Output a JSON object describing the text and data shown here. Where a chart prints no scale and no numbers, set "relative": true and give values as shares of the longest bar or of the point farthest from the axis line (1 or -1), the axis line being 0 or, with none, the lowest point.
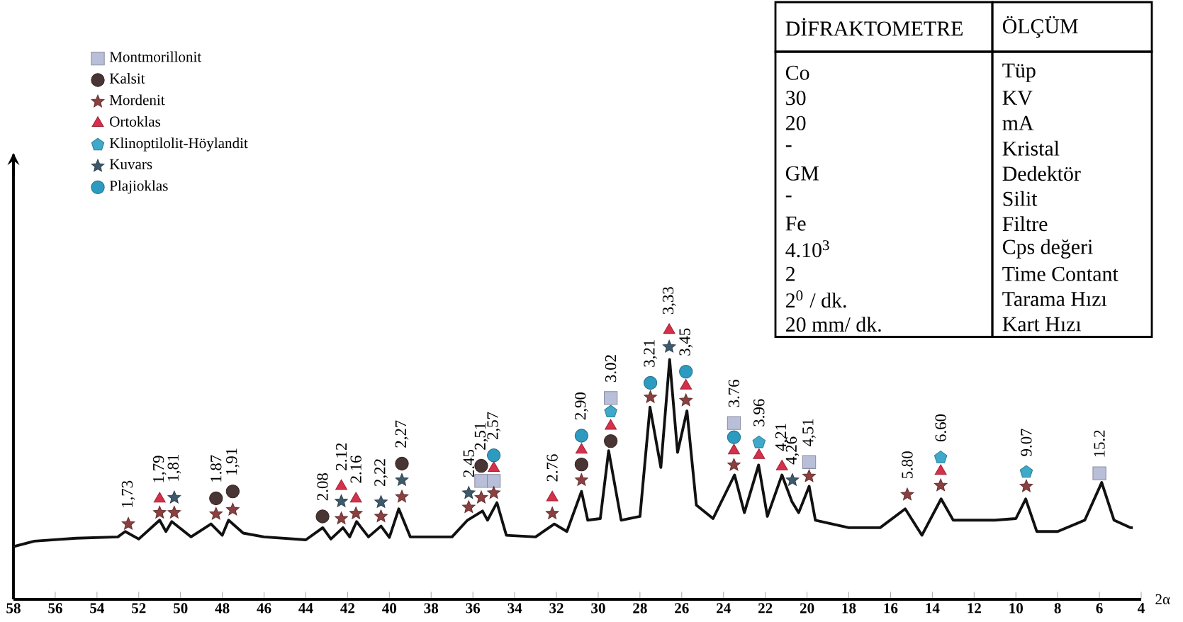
{
  "chart_data": {
    "type": "line",
    "relative": true,
    "xlabel": "2α",
    "xlim": [
      58,
      4
    ],
    "xticks": [
      58,
      56,
      54,
      52,
      50,
      48,
      46,
      44,
      42,
      40,
      38,
      36,
      34,
      32,
      30,
      28,
      26,
      24,
      22,
      20,
      18,
      16,
      14,
      12,
      10,
      8,
      6,
      4
    ],
    "legend": "top left",
    "series": [
      {
        "type": "line",
        "color": "#111111",
        "x": [
          58,
          57,
          55,
          53,
          52.65,
          52,
          51,
          50.7,
          50.42,
          49.5,
          48.54,
          48,
          47.7,
          47,
          46,
          44,
          43.19,
          42.8,
          42.22,
          41.9,
          41.57,
          41,
          40.4,
          40,
          39.55,
          39,
          37,
          36.26,
          35.54,
          35.3,
          34.85,
          34.4,
          33,
          32.1,
          31.5,
          30.8,
          30.5,
          29.9,
          29.5,
          28.9,
          28.0,
          27.52,
          27.0,
          26.58,
          26.2,
          25.75,
          25.3,
          24.5,
          23.47,
          23.0,
          22.32,
          21.9,
          21.2,
          20.73,
          20.4,
          19.9,
          19.6,
          18,
          16.5,
          15.3,
          14.5,
          13.58,
          13,
          11,
          10,
          9.53,
          9,
          8,
          6.7,
          5.89,
          5.3,
          4.5,
          4.4
        ],
        "values": [
          0.196,
          0.216,
          0.227,
          0.232,
          0.252,
          0.224,
          0.294,
          0.252,
          0.289,
          0.232,
          0.28,
          0.238,
          0.294,
          0.246,
          0.232,
          0.221,
          0.266,
          0.224,
          0.266,
          0.232,
          0.289,
          0.232,
          0.272,
          0.23,
          0.336,
          0.232,
          0.232,
          0.294,
          0.328,
          0.294,
          0.359,
          0.238,
          0.232,
          0.28,
          0.252,
          0.401,
          0.294,
          0.3,
          0.552,
          0.294,
          0.308,
          0.714,
          0.49,
          0.891,
          0.546,
          0.7,
          0.35,
          0.3,
          0.462,
          0.322,
          0.499,
          0.308,
          0.462,
          0.364,
          0.322,
          0.42,
          0.294,
          0.266,
          0.266,
          0.336,
          0.238,
          0.373,
          0.294,
          0.294,
          0.3,
          0.373,
          0.252,
          0.252,
          0.294,
          0.434,
          0.294,
          0.266,
          0.266
        ]
      },
      {
        "type": "scatter",
        "name": "Montmorillonit",
        "color": "#b9bfd8",
        "marker": "square",
        "x": [
          35.6,
          35.0,
          29.4,
          23.5,
          19.9,
          6.0
        ],
        "values": [
          0.44,
          0.44,
          0.748,
          0.655,
          0.51,
          0.468
        ]
      },
      {
        "type": "scatter",
        "name": "Kalsit",
        "color": "#4a3535",
        "marker": "circle",
        "x": [
          48.3,
          47.5,
          43.2,
          39.4,
          35.6,
          30.8,
          29.4
        ],
        "values": [
          0.375,
          0.401,
          0.308,
          0.504,
          0.496,
          0.501,
          0.588
        ]
      },
      {
        "type": "scatter",
        "name": "Mordenit",
        "color": "#8b4040",
        "marker": "star",
        "x": [
          52.5,
          51,
          50.3,
          48.3,
          47.5,
          42.3,
          41.6,
          40.4,
          39.4,
          36.2,
          35.6,
          35.0,
          32.2,
          30.8,
          27.5,
          25.8,
          23.5,
          19.9,
          15.2,
          13.6,
          9.5
        ],
        "values": [
          0.28,
          0.322,
          0.322,
          0.317,
          0.333,
          0.3,
          0.319,
          0.308,
          0.381,
          0.342,
          0.378,
          0.395,
          0.319,
          0.443,
          0.751,
          0.739,
          0.499,
          0.457,
          0.389,
          0.423,
          0.42
        ]
      },
      {
        "type": "scatter",
        "name": "Ortoklas",
        "color": "#d6304a",
        "marker": "triangle",
        "x": [
          51,
          42.3,
          41.6,
          35.0,
          32.2,
          30.8,
          29.4,
          26.6,
          25.8,
          23.5,
          22.3,
          21.2,
          13.6
        ],
        "values": [
          0.373,
          0.42,
          0.373,
          0.487,
          0.378,
          0.555,
          0.644,
          1.0,
          0.793,
          0.552,
          0.535,
          0.493,
          0.476
        ]
      },
      {
        "type": "scatter",
        "name": "Klinoptilolit-Höylandit",
        "color": "#3fa9c9",
        "marker": "diamond",
        "x": [
          29.4,
          22.3,
          13.6,
          9.5
        ],
        "values": [
          0.697,
          0.583,
          0.527,
          0.473
        ]
      },
      {
        "type": "scatter",
        "name": "Kuvars",
        "color": "#3d5a6c",
        "marker": "star",
        "x": [
          50.3,
          42.3,
          40.4,
          39.4,
          36.2,
          26.6,
          20.7
        ],
        "values": [
          0.378,
          0.364,
          0.361,
          0.443,
          0.395,
          0.938,
          0.443
        ]
      },
      {
        "type": "scatter",
        "name": "Plajioklas",
        "color": "#2d9bbf",
        "marker": "circle",
        "x": [
          35.0,
          30.8,
          27.5,
          25.8,
          23.5
        ],
        "values": [
          0.535,
          0.608,
          0.804,
          0.846,
          0.602
        ]
      }
    ],
    "annotations": [
      {
        "text": "1,73",
        "x": 52.5,
        "y": 0.28
      },
      {
        "text": "1,79",
        "x": 51,
        "y": 0.373
      },
      {
        "text": "1,81",
        "x": 50.3,
        "y": 0.378
      },
      {
        "text": "1.87",
        "x": 48.3,
        "y": 0.375
      },
      {
        "text": "1,91",
        "x": 47.5,
        "y": 0.401
      },
      {
        "text": "2.08",
        "x": 43.2,
        "y": 0.308
      },
      {
        "text": "2.12",
        "x": 42.3,
        "y": 0.42
      },
      {
        "text": "2.16",
        "x": 41.6,
        "y": 0.373
      },
      {
        "text": "2,22",
        "x": 40.4,
        "y": 0.361
      },
      {
        "text": "2,27",
        "x": 39.4,
        "y": 0.504
      },
      {
        "text": "2.45",
        "x": 36.2,
        "y": 0.395
      },
      {
        "text": "2,51",
        "x": 35.6,
        "y": 0.496
      },
      {
        "text": "2,57",
        "x": 35.0,
        "y": 0.535
      },
      {
        "text": "2.76",
        "x": 32.2,
        "y": 0.378
      },
      {
        "text": "2,90",
        "x": 30.8,
        "y": 0.608
      },
      {
        "text": "3.02",
        "x": 29.4,
        "y": 0.748
      },
      {
        "text": "3,21",
        "x": 27.5,
        "y": 0.804
      },
      {
        "text": "3,33",
        "x": 26.6,
        "y": 1.0
      },
      {
        "text": "3,45",
        "x": 25.8,
        "y": 0.846
      },
      {
        "text": "3.76",
        "x": 23.5,
        "y": 0.655
      },
      {
        "text": "3.96",
        "x": 22.3,
        "y": 0.583
      },
      {
        "text": "4,21",
        "x": 21.2,
        "y": 0.493
      },
      {
        "text": "4,26",
        "x": 20.7,
        "y": 0.443
      },
      {
        "text": "4,51",
        "x": 19.9,
        "y": 0.51
      },
      {
        "text": "5.80",
        "x": 15.2,
        "y": 0.389
      },
      {
        "text": "6.60",
        "x": 13.6,
        "y": 0.527
      },
      {
        "text": "9.07",
        "x": 9.5,
        "y": 0.473
      },
      {
        "text": "15.2",
        "x": 6.0,
        "y": 0.468
      },
      "DİFRAKTOMETRE",
      "ÖLÇÜM",
      "Co",
      "Tüp",
      "30",
      "KV",
      "20",
      "mA",
      "-",
      "Kristal",
      "GM",
      "Dedektör",
      "-",
      "Silit",
      "Fe",
      "Filtre",
      "4.10$^{3}$",
      "Cps değeri",
      "2",
      "Time Contant",
      "2$^{0}$ / dk.",
      "Tarama Hızı",
      "20 mm/ dk.",
      "Kart Hızı"
    ]
  }
}
